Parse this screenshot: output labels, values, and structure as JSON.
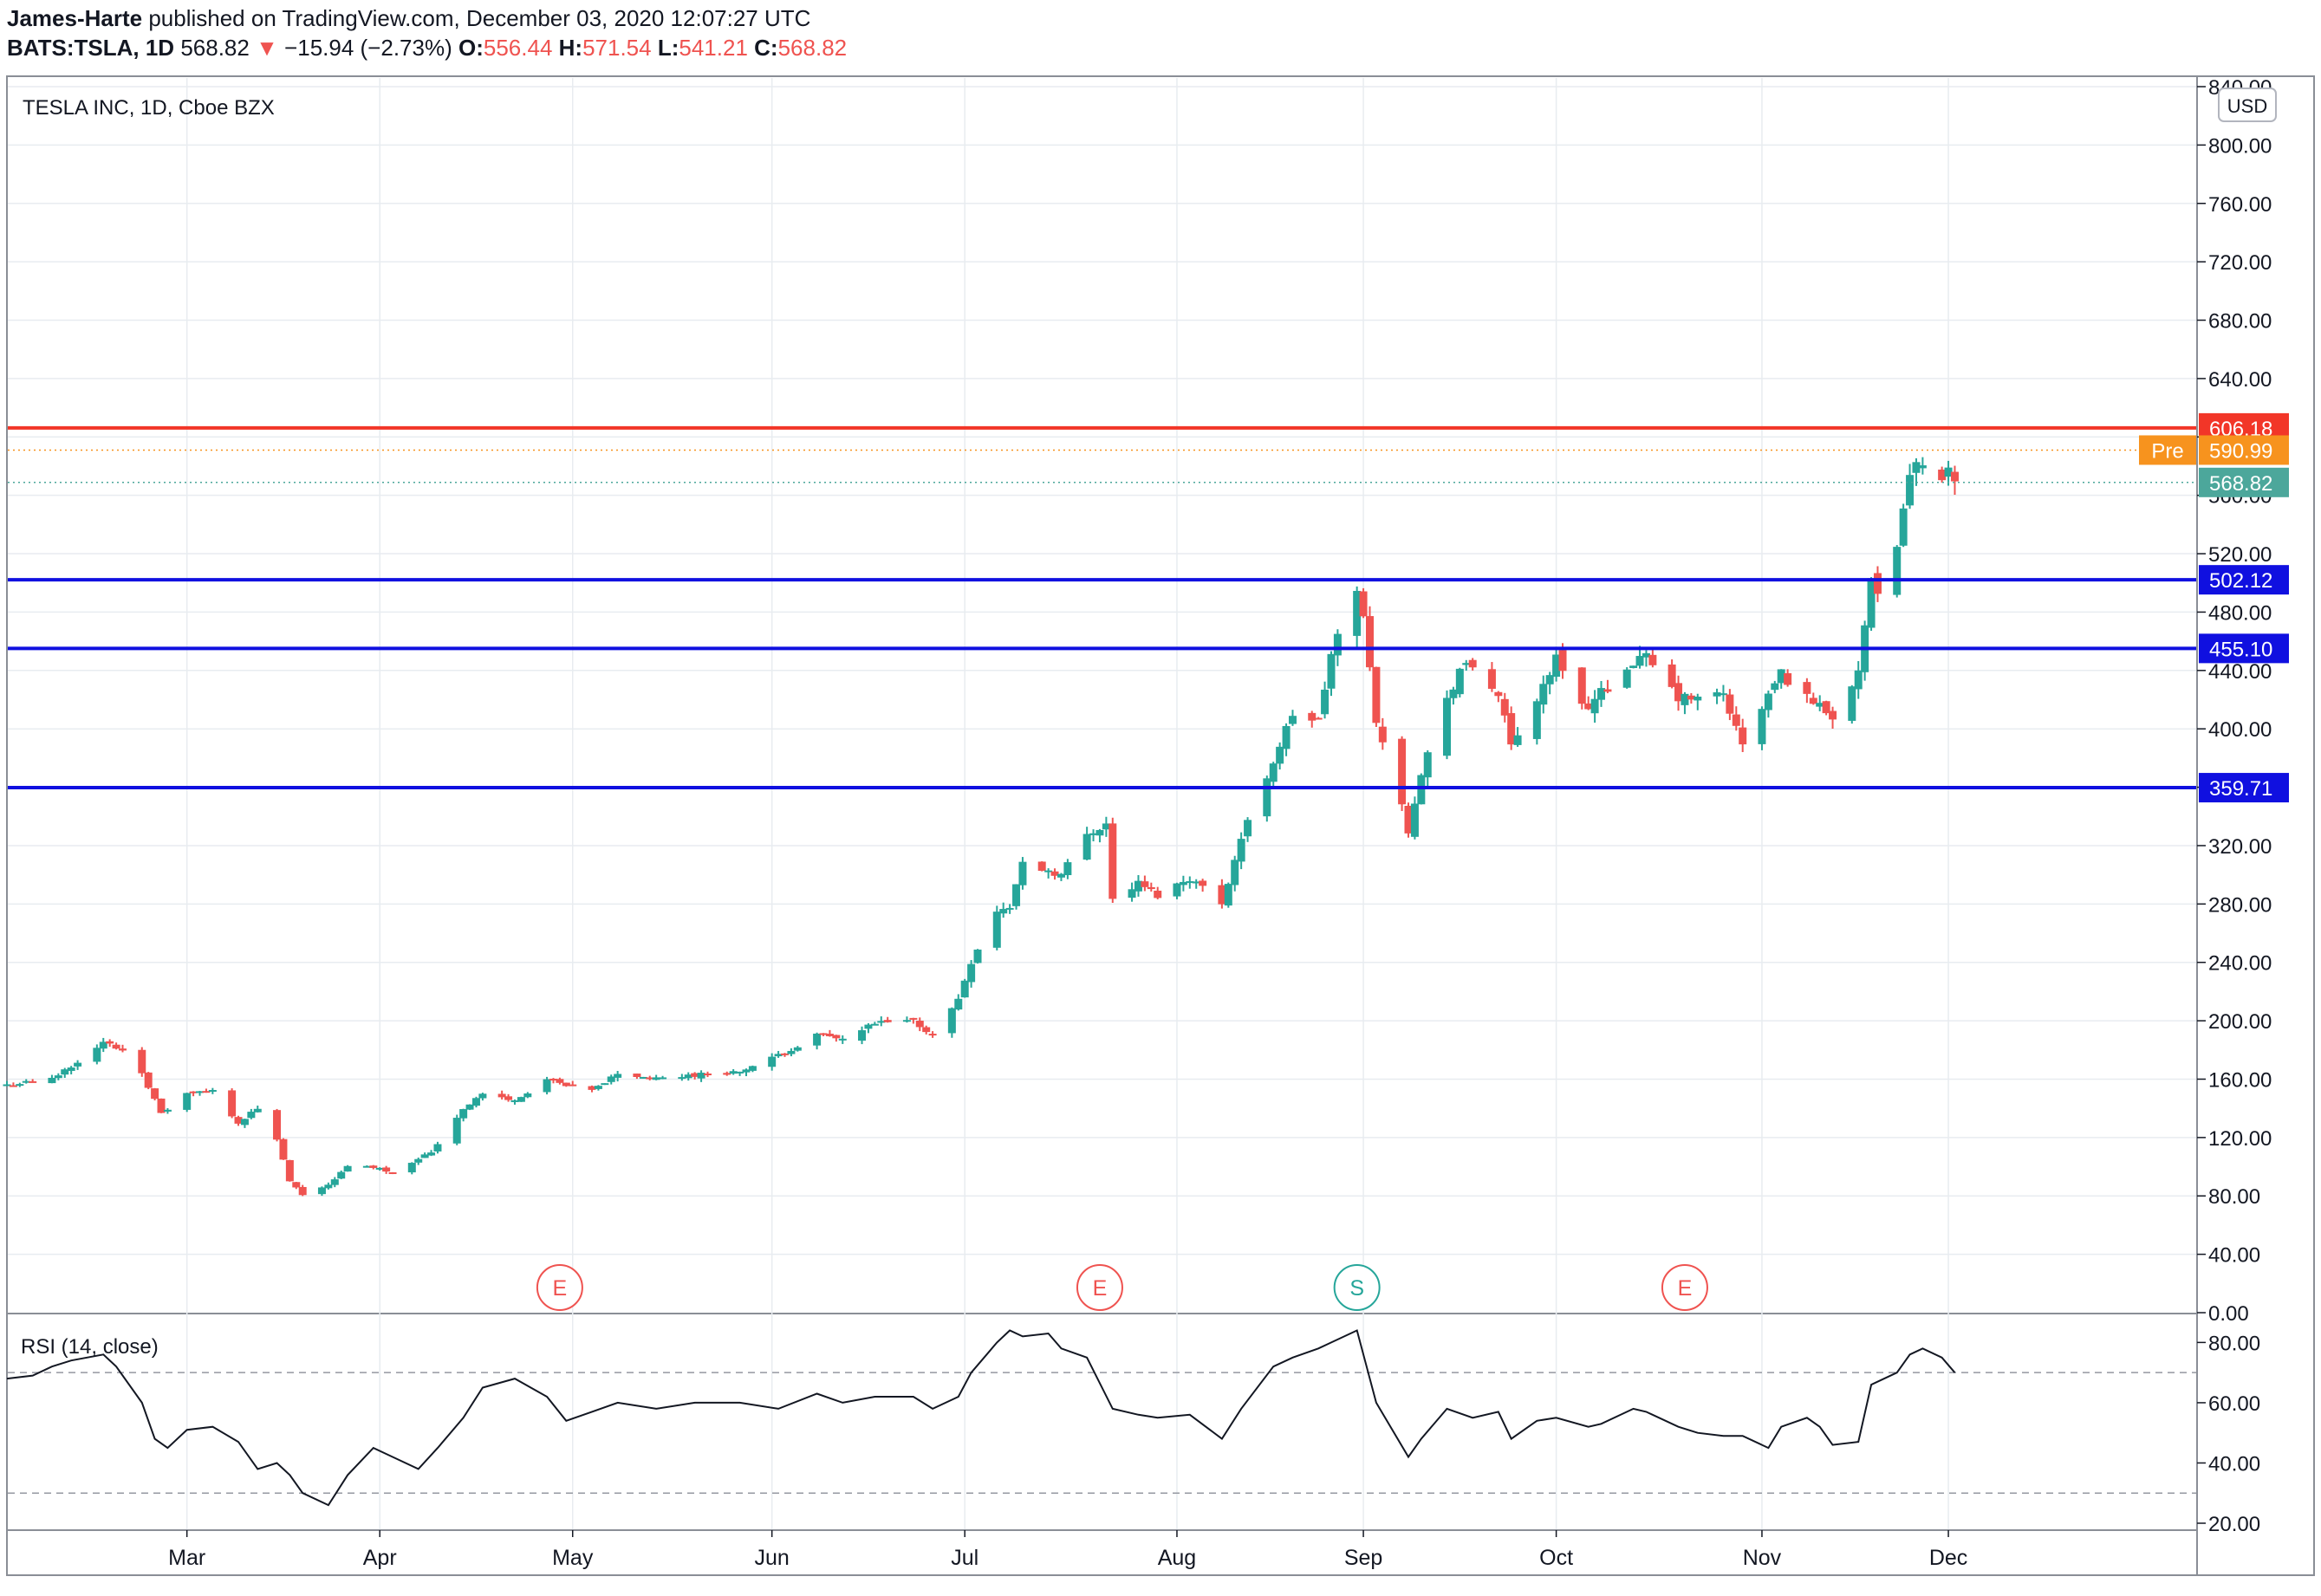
{
  "header": {
    "publisher": "James-Harte",
    "published_text": "published on TradingView.com, December 03, 2020 12:07:27 UTC",
    "symbol": "BATS:TSLA, 1D",
    "last": "568.82",
    "down_arrow": "▼",
    "change": "−15.94 (−2.73%)",
    "o_label": "O:",
    "o_value": "556.44",
    "h_label": "H:",
    "h_value": "571.54",
    "l_label": "L:",
    "l_value": "541.21",
    "c_label": "C:",
    "c_value": "568.82"
  },
  "pane_title": "TESLA INC, 1D, Cboe BZX",
  "currency_button": "USD",
  "rsi_label": "RSI (14, close)",
  "colors": {
    "up": "#26a69a",
    "down": "#ef5350",
    "grid": "#e8ecf0",
    "resistance": "#f23628",
    "support": "#1010e0",
    "pre": "#f7931e",
    "last": "#4ca79b"
  },
  "chart_data": [
    {
      "type": "candlestick",
      "title": "TESLA INC, 1D, Cboe BZX",
      "ylim": [
        0,
        840
      ],
      "y_ticks": [
        "0.00",
        "40.00",
        "80.00",
        "120.00",
        "160.00",
        "200.00",
        "240.00",
        "280.00",
        "320.00",
        "360.00",
        "400.00",
        "440.00",
        "480.00",
        "520.00",
        "560.00",
        "600.00",
        "640.00",
        "680.00",
        "720.00",
        "760.00",
        "800.00",
        "840.00"
      ],
      "x_ticks": [
        {
          "label": "Mar",
          "date": "2020-03-02"
        },
        {
          "label": "Apr",
          "date": "2020-04-01"
        },
        {
          "label": "May",
          "date": "2020-05-01"
        },
        {
          "label": "Jun",
          "date": "2020-06-01"
        },
        {
          "label": "Jul",
          "date": "2020-07-01"
        },
        {
          "label": "Aug",
          "date": "2020-08-03"
        },
        {
          "label": "Sep",
          "date": "2020-09-01"
        },
        {
          "label": "Oct",
          "date": "2020-10-01"
        },
        {
          "label": "Nov",
          "date": "2020-11-02"
        },
        {
          "label": "Dec",
          "date": "2020-12-01"
        }
      ],
      "x_range": [
        "2020-02-03",
        "2021-01-01"
      ],
      "levels": [
        {
          "value": 606.18,
          "label": "606.18",
          "style": "resistance"
        },
        {
          "value": 502.12,
          "label": "502.12",
          "style": "support"
        },
        {
          "value": 455.1,
          "label": "455.10",
          "style": "support"
        },
        {
          "value": 359.71,
          "label": "359.71",
          "style": "support"
        }
      ],
      "price_tags": [
        {
          "value": 590.99,
          "prefix": "Pre",
          "label": "590.99",
          "style": "pre"
        },
        {
          "value": 568.82,
          "label": "568.82",
          "style": "last"
        }
      ],
      "events": [
        {
          "letter": "E",
          "date": "2020-04-29",
          "kind": "earnings"
        },
        {
          "letter": "E",
          "date": "2020-07-22",
          "kind": "earnings"
        },
        {
          "letter": "S",
          "date": "2020-08-31",
          "kind": "split"
        },
        {
          "letter": "E",
          "date": "2020-10-21",
          "kind": "earnings"
        }
      ],
      "closes": [
        {
          "date": "2020-02-03",
          "close": 156
        },
        {
          "date": "2020-02-10",
          "close": 160
        },
        {
          "date": "2020-02-18",
          "close": 185
        },
        {
          "date": "2020-02-21",
          "close": 180
        },
        {
          "date": "2020-02-24",
          "close": 165
        },
        {
          "date": "2020-02-27",
          "close": 136
        },
        {
          "date": "2020-03-02",
          "close": 150
        },
        {
          "date": "2020-03-06",
          "close": 152
        },
        {
          "date": "2020-03-10",
          "close": 130
        },
        {
          "date": "2020-03-13",
          "close": 140
        },
        {
          "date": "2020-03-16",
          "close": 118
        },
        {
          "date": "2020-03-18",
          "close": 90
        },
        {
          "date": "2020-03-20",
          "close": 80
        },
        {
          "date": "2020-03-24",
          "close": 88
        },
        {
          "date": "2020-03-27",
          "close": 100
        },
        {
          "date": "2020-03-31",
          "close": 100
        },
        {
          "date": "2020-04-03",
          "close": 96
        },
        {
          "date": "2020-04-07",
          "close": 106
        },
        {
          "date": "2020-04-09",
          "close": 110
        },
        {
          "date": "2020-04-14",
          "close": 140
        },
        {
          "date": "2020-04-17",
          "close": 150
        },
        {
          "date": "2020-04-22",
          "close": 145
        },
        {
          "date": "2020-04-27",
          "close": 160
        },
        {
          "date": "2020-04-30",
          "close": 155
        },
        {
          "date": "2020-05-04",
          "close": 152
        },
        {
          "date": "2020-05-08",
          "close": 164
        },
        {
          "date": "2020-05-14",
          "close": 160
        },
        {
          "date": "2020-05-20",
          "close": 163
        },
        {
          "date": "2020-05-27",
          "close": 165
        },
        {
          "date": "2020-06-02",
          "close": 176
        },
        {
          "date": "2020-06-08",
          "close": 190
        },
        {
          "date": "2020-06-12",
          "close": 187
        },
        {
          "date": "2020-06-17",
          "close": 198
        },
        {
          "date": "2020-06-23",
          "close": 200
        },
        {
          "date": "2020-06-26",
          "close": 190
        },
        {
          "date": "2020-06-30",
          "close": 215
        },
        {
          "date": "2020-07-02",
          "close": 241
        },
        {
          "date": "2020-07-06",
          "close": 275
        },
        {
          "date": "2020-07-08",
          "close": 278
        },
        {
          "date": "2020-07-10",
          "close": 308
        },
        {
          "date": "2020-07-14",
          "close": 303
        },
        {
          "date": "2020-07-16",
          "close": 300
        },
        {
          "date": "2020-07-20",
          "close": 328
        },
        {
          "date": "2020-07-23",
          "close": 335
        },
        {
          "date": "2020-07-24",
          "close": 283
        },
        {
          "date": "2020-07-28",
          "close": 294
        },
        {
          "date": "2020-07-31",
          "close": 286
        },
        {
          "date": "2020-08-05",
          "close": 298
        },
        {
          "date": "2020-08-10",
          "close": 281
        },
        {
          "date": "2020-08-13",
          "close": 325
        },
        {
          "date": "2020-08-18",
          "close": 378
        },
        {
          "date": "2020-08-21",
          "close": 410
        },
        {
          "date": "2020-08-25",
          "close": 405
        },
        {
          "date": "2020-08-27",
          "close": 450
        },
        {
          "date": "2020-08-31",
          "close": 498
        },
        {
          "date": "2020-09-01",
          "close": 475
        },
        {
          "date": "2020-09-03",
          "close": 407
        },
        {
          "date": "2020-09-08",
          "close": 331
        },
        {
          "date": "2020-09-10",
          "close": 371
        },
        {
          "date": "2020-09-14",
          "close": 419
        },
        {
          "date": "2020-09-16",
          "close": 441
        },
        {
          "date": "2020-09-18",
          "close": 442
        },
        {
          "date": "2020-09-22",
          "close": 424
        },
        {
          "date": "2020-09-24",
          "close": 387
        },
        {
          "date": "2020-09-28",
          "close": 421
        },
        {
          "date": "2020-10-01",
          "close": 448
        },
        {
          "date": "2020-10-06",
          "close": 413
        },
        {
          "date": "2020-10-08",
          "close": 425
        },
        {
          "date": "2020-10-13",
          "close": 446
        },
        {
          "date": "2020-10-15",
          "close": 448
        },
        {
          "date": "2020-10-20",
          "close": 421
        },
        {
          "date": "2020-10-23",
          "close": 420
        },
        {
          "date": "2020-10-27",
          "close": 424
        },
        {
          "date": "2020-10-30",
          "close": 388
        },
        {
          "date": "2020-11-03",
          "close": 423
        },
        {
          "date": "2020-11-05",
          "close": 438
        },
        {
          "date": "2020-11-09",
          "close": 421
        },
        {
          "date": "2020-11-11",
          "close": 417
        },
        {
          "date": "2020-11-13",
          "close": 408
        },
        {
          "date": "2020-11-17",
          "close": 441
        },
        {
          "date": "2020-11-19",
          "close": 499
        },
        {
          "date": "2020-11-20",
          "close": 489
        },
        {
          "date": "2020-11-23",
          "close": 521
        },
        {
          "date": "2020-11-24",
          "close": 555
        },
        {
          "date": "2020-11-25",
          "close": 574
        },
        {
          "date": "2020-11-27",
          "close": 585
        },
        {
          "date": "2020-11-30",
          "close": 567
        },
        {
          "date": "2020-12-01",
          "close": 584
        },
        {
          "date": "2020-12-02",
          "close": 568.82
        }
      ]
    },
    {
      "type": "line",
      "title": "RSI (14, close)",
      "ylim": [
        20,
        85
      ],
      "y_ticks": [
        "20.00",
        "40.00",
        "60.00",
        "80.00"
      ],
      "bands": [
        30,
        70
      ],
      "series": [
        {
          "x": [
            "2020-02-03",
            "2020-02-07",
            "2020-02-10",
            "2020-02-13",
            "2020-02-18",
            "2020-02-20",
            "2020-02-24",
            "2020-02-26",
            "2020-02-28",
            "2020-03-02",
            "2020-03-06",
            "2020-03-10",
            "2020-03-13",
            "2020-03-16",
            "2020-03-18",
            "2020-03-20",
            "2020-03-24",
            "2020-03-27",
            "2020-03-31",
            "2020-04-03",
            "2020-04-07",
            "2020-04-10",
            "2020-04-14",
            "2020-04-17",
            "2020-04-22",
            "2020-04-27",
            "2020-04-30",
            "2020-05-04",
            "2020-05-08",
            "2020-05-14",
            "2020-05-20",
            "2020-05-27",
            "2020-06-02",
            "2020-06-08",
            "2020-06-12",
            "2020-06-17",
            "2020-06-23",
            "2020-06-26",
            "2020-06-30",
            "2020-07-02",
            "2020-07-06",
            "2020-07-08",
            "2020-07-10",
            "2020-07-14",
            "2020-07-16",
            "2020-07-20",
            "2020-07-24",
            "2020-07-28",
            "2020-07-31",
            "2020-08-05",
            "2020-08-10",
            "2020-08-13",
            "2020-08-18",
            "2020-08-21",
            "2020-08-25",
            "2020-08-27",
            "2020-08-31",
            "2020-09-03",
            "2020-09-08",
            "2020-09-10",
            "2020-09-14",
            "2020-09-18",
            "2020-09-22",
            "2020-09-24",
            "2020-09-28",
            "2020-10-01",
            "2020-10-06",
            "2020-10-08",
            "2020-10-13",
            "2020-10-15",
            "2020-10-20",
            "2020-10-23",
            "2020-10-27",
            "2020-10-30",
            "2020-11-03",
            "2020-11-05",
            "2020-11-09",
            "2020-11-11",
            "2020-11-13",
            "2020-11-17",
            "2020-11-19",
            "2020-11-23",
            "2020-11-25",
            "2020-11-27",
            "2020-11-30",
            "2020-12-02"
          ],
          "values": [
            68,
            69,
            72,
            74,
            76,
            72,
            60,
            48,
            45,
            51,
            52,
            47,
            38,
            40,
            36,
            30,
            26,
            36,
            45,
            42,
            38,
            45,
            55,
            65,
            68,
            62,
            54,
            57,
            60,
            58,
            60,
            60,
            58,
            63,
            60,
            62,
            62,
            58,
            62,
            70,
            80,
            84,
            82,
            83,
            78,
            75,
            58,
            56,
            55,
            56,
            48,
            58,
            72,
            75,
            78,
            80,
            84,
            60,
            42,
            48,
            58,
            55,
            57,
            48,
            54,
            55,
            52,
            53,
            58,
            57,
            52,
            50,
            49,
            49,
            45,
            52,
            55,
            52,
            46,
            47,
            66,
            70,
            76,
            78,
            75,
            70
          ]
        }
      ]
    }
  ]
}
